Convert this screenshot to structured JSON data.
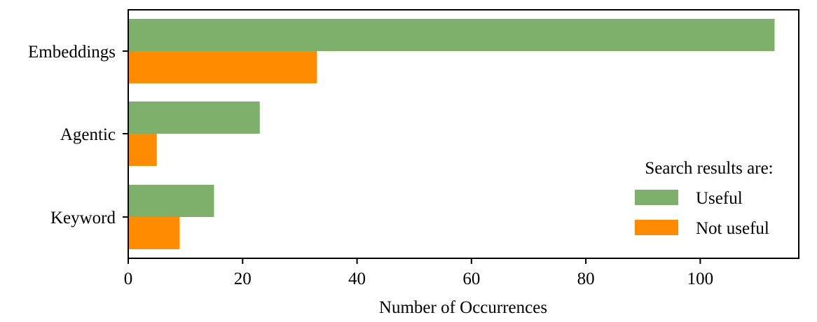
{
  "chart_data": {
    "type": "bar",
    "orientation": "horizontal",
    "categories": [
      "Embeddings",
      "Agentic",
      "Keyword"
    ],
    "series": [
      {
        "name": "Useful",
        "values": [
          113,
          23,
          15
        ],
        "color": "#7fb06b"
      },
      {
        "name": "Not useful",
        "values": [
          33,
          5,
          9
        ],
        "color": "#ff8c00"
      }
    ],
    "xlabel": "Number of Occurrences",
    "ylabel": "",
    "xlim": [
      0,
      115
    ],
    "xticks": [
      0,
      20,
      40,
      60,
      80,
      100
    ],
    "legend": {
      "title": "Search results are:",
      "placement": "lower-right"
    },
    "grid": false
  }
}
